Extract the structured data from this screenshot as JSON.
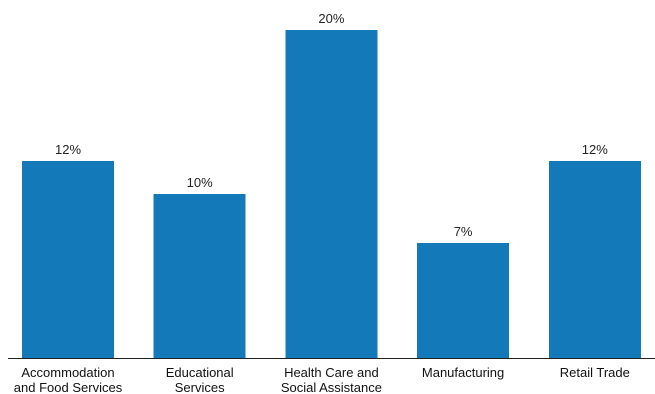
{
  "chart_data": {
    "type": "bar",
    "title": "",
    "xlabel": "",
    "ylabel": "",
    "categories": [
      [
        "Accommodation",
        "and Food Services"
      ],
      [
        "Educational",
        "Services"
      ],
      [
        "Health Care and",
        "Social Assistance"
      ],
      [
        "Manufacturing"
      ],
      [
        "Retail Trade"
      ]
    ],
    "values": [
      12,
      10,
      20,
      7,
      12
    ],
    "value_labels": [
      "12%",
      "10%",
      "20%",
      "7%",
      "12%"
    ],
    "ylim": [
      0,
      20
    ],
    "grid": false,
    "legend": "none",
    "colors": {
      "bar": "#1479b8",
      "axis": "#222222"
    }
  }
}
